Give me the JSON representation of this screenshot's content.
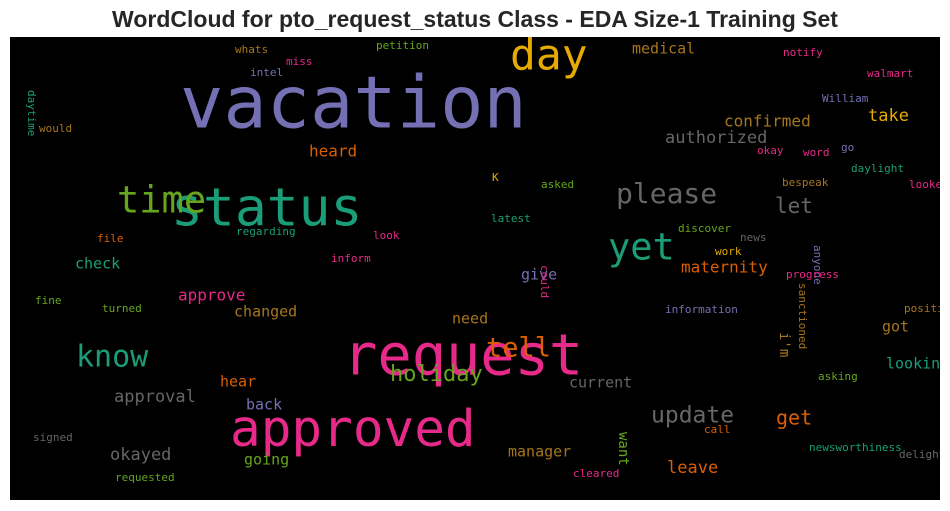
{
  "chart_data": {
    "type": "wordcloud",
    "title": "WordCloud for pto_request_status Class - EDA Size-1 Training Set",
    "background": "#000000",
    "words": [
      {
        "text": "vacation",
        "color": "#7570b3",
        "weight": 72
      },
      {
        "text": "request",
        "color": "#e7298a",
        "weight": 57
      },
      {
        "text": "status",
        "color": "#1b9e77",
        "weight": 53
      },
      {
        "text": "approved",
        "color": "#e7298a",
        "weight": 51
      },
      {
        "text": "day",
        "color": "#e6ab02",
        "weight": 43
      },
      {
        "text": "time",
        "color": "#66a61e",
        "weight": 37
      },
      {
        "text": "yet",
        "color": "#1b9e77",
        "weight": 37
      },
      {
        "text": "know",
        "color": "#1b9e77",
        "weight": 30
      },
      {
        "text": "please",
        "color": "#666666",
        "weight": 28
      },
      {
        "text": "tell",
        "color": "#d95f02",
        "weight": 27
      },
      {
        "text": "update",
        "color": "#666666",
        "weight": 23
      },
      {
        "text": "holiday",
        "color": "#66a61e",
        "weight": 22
      },
      {
        "text": "let",
        "color": "#666666",
        "weight": 21
      },
      {
        "text": "get",
        "color": "#d95f02",
        "weight": 20
      },
      {
        "text": "authorized",
        "color": "#666666",
        "weight": 17
      },
      {
        "text": "approval",
        "color": "#666666",
        "weight": 17
      },
      {
        "text": "take",
        "color": "#e6ab02",
        "weight": 17
      },
      {
        "text": "leave",
        "color": "#d95f02",
        "weight": 17
      },
      {
        "text": "okayed",
        "color": "#666666",
        "weight": 17
      },
      {
        "text": "confirmed",
        "color": "#a6761d",
        "weight": 16
      },
      {
        "text": "heard",
        "color": "#d95f02",
        "weight": 16
      },
      {
        "text": "approve",
        "color": "#e7298a",
        "weight": 16
      },
      {
        "text": "maternity",
        "color": "#d95f02",
        "weight": 16
      },
      {
        "text": "medical",
        "color": "#a6761d",
        "weight": 15
      },
      {
        "text": "check",
        "color": "#1b9e77",
        "weight": 15
      },
      {
        "text": "changed",
        "color": "#a6761d",
        "weight": 15
      },
      {
        "text": "need",
        "color": "#a6761d",
        "weight": 15
      },
      {
        "text": "give",
        "color": "#7570b3",
        "weight": 15
      },
      {
        "text": "looking",
        "color": "#1b9e77",
        "weight": 15
      },
      {
        "text": "hear",
        "color": "#d95f02",
        "weight": 15
      },
      {
        "text": "back",
        "color": "#7570b3",
        "weight": 15
      },
      {
        "text": "going",
        "color": "#66a61e",
        "weight": 15
      },
      {
        "text": "current",
        "color": "#666666",
        "weight": 15
      },
      {
        "text": "manager",
        "color": "#a6761d",
        "weight": 15
      },
      {
        "text": "got",
        "color": "#a6761d",
        "weight": 15
      },
      {
        "text": "want",
        "color": "#66a61e",
        "weight": 14
      },
      {
        "text": "i'm",
        "color": "#a6761d",
        "weight": 14
      },
      {
        "text": "whats",
        "color": "#a6761d",
        "weight": 11
      },
      {
        "text": "petition",
        "color": "#66a61e",
        "weight": 11
      },
      {
        "text": "miss",
        "color": "#e7298a",
        "weight": 11
      },
      {
        "text": "intel",
        "color": "#7570b3",
        "weight": 11
      },
      {
        "text": "notify",
        "color": "#e7298a",
        "weight": 11
      },
      {
        "text": "walmart",
        "color": "#e7298a",
        "weight": 11
      },
      {
        "text": "daytime",
        "color": "#1b9e77",
        "weight": 11
      },
      {
        "text": "would",
        "color": "#a6761d",
        "weight": 11
      },
      {
        "text": "William",
        "color": "#7570b3",
        "weight": 11
      },
      {
        "text": "go",
        "color": "#7570b3",
        "weight": 11
      },
      {
        "text": "word",
        "color": "#e7298a",
        "weight": 11
      },
      {
        "text": "okay",
        "color": "#e7298a",
        "weight": 11
      },
      {
        "text": "daylight",
        "color": "#1b9e77",
        "weight": 11
      },
      {
        "text": "looked",
        "color": "#e7298a",
        "weight": 11
      },
      {
        "text": "K",
        "color": "#e6ab02",
        "weight": 11
      },
      {
        "text": "asked",
        "color": "#66a61e",
        "weight": 11
      },
      {
        "text": "bespeak",
        "color": "#a6761d",
        "weight": 11
      },
      {
        "text": "latest",
        "color": "#1b9e77",
        "weight": 11
      },
      {
        "text": "regarding",
        "color": "#1b9e77",
        "weight": 11
      },
      {
        "text": "look",
        "color": "#e7298a",
        "weight": 11
      },
      {
        "text": "file",
        "color": "#d95f02",
        "weight": 11
      },
      {
        "text": "discover",
        "color": "#66a61e",
        "weight": 11
      },
      {
        "text": "news",
        "color": "#666666",
        "weight": 11
      },
      {
        "text": "work",
        "color": "#e6ab02",
        "weight": 11
      },
      {
        "text": "anyone",
        "color": "#7570b3",
        "weight": 11
      },
      {
        "text": "inform",
        "color": "#e7298a",
        "weight": 11
      },
      {
        "text": "could",
        "color": "#e7298a",
        "weight": 11
      },
      {
        "text": "fine",
        "color": "#66a61e",
        "weight": 11
      },
      {
        "text": "turned",
        "color": "#66a61e",
        "weight": 11
      },
      {
        "text": "progress",
        "color": "#e7298a",
        "weight": 11
      },
      {
        "text": "sanctioned",
        "color": "#a6761d",
        "weight": 11
      },
      {
        "text": "position",
        "color": "#a6761d",
        "weight": 11
      },
      {
        "text": "information",
        "color": "#7570b3",
        "weight": 11
      },
      {
        "text": "asking",
        "color": "#66a61e",
        "weight": 11
      },
      {
        "text": "signed",
        "color": "#666666",
        "weight": 11
      },
      {
        "text": "call",
        "color": "#d95f02",
        "weight": 11
      },
      {
        "text": "newsworthiness",
        "color": "#1b9e77",
        "weight": 11
      },
      {
        "text": "delight",
        "color": "#666666",
        "weight": 11
      },
      {
        "text": "cleared",
        "color": "#e7298a",
        "weight": 11
      },
      {
        "text": "requested",
        "color": "#66a61e",
        "weight": 11
      }
    ]
  }
}
